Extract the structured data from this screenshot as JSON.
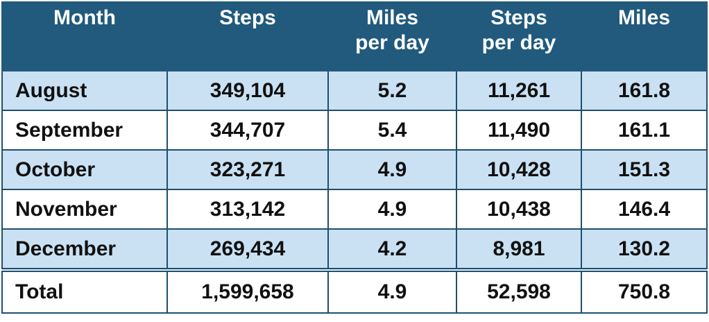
{
  "table": {
    "header": [
      "Month",
      "Steps",
      "Miles\nper day",
      "Steps\nper day",
      "Miles"
    ],
    "rows": [
      [
        "August",
        "349,104",
        "5.2",
        "11,261",
        "161.8"
      ],
      [
        "September",
        "344,707",
        "5.4",
        "11,490",
        "161.1"
      ],
      [
        "October",
        "323,271",
        "4.9",
        "10,428",
        "151.3"
      ],
      [
        "November",
        "313,142",
        "4.9",
        "10,438",
        "146.4"
      ],
      [
        "December",
        "269,434",
        "4.2",
        "8,981",
        "130.2"
      ]
    ],
    "total": [
      "Total",
      "1,599,658",
      "4.9",
      "52,598",
      "750.8"
    ]
  }
}
